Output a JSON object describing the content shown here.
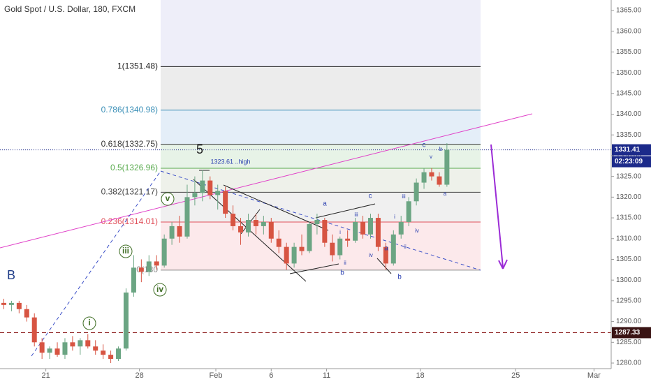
{
  "chart_data": {
    "type": "candlestick",
    "title": "Gold Spot / U.S. Dollar, 180, FXCM",
    "up_color": "#6ba583",
    "down_color": "#d75442",
    "x": [
      1,
      3,
      5,
      7,
      9,
      11,
      13,
      15,
      17,
      19,
      21,
      23,
      25,
      27,
      29,
      31,
      33,
      35,
      37,
      39,
      41,
      43,
      45,
      47,
      49,
      51,
      53,
      55,
      57,
      59,
      61,
      63,
      65,
      67,
      69,
      71,
      73,
      75,
      77,
      79,
      81,
      83,
      85,
      87,
      89,
      91,
      93,
      95,
      97,
      99,
      101,
      103,
      105,
      107,
      109,
      111,
      113,
      115,
      117
    ],
    "open": [
      1294.5,
      1294,
      1294.5,
      1293,
      1291,
      1285,
      1282.5,
      1283.5,
      1282,
      1285,
      1284,
      1285.5,
      1284,
      1283,
      1282,
      1281,
      1283.5,
      1297,
      1303,
      1302,
      1304.5,
      1303.5,
      1310,
      1313,
      1310.5,
      1320,
      1321,
      1324,
      1320.5,
      1321.5,
      1316,
      1313,
      1311.5,
      1314.5,
      1313,
      1314,
      1310,
      1308,
      1304,
      1308,
      1307,
      1313.5,
      1314.5,
      1309,
      1306,
      1310,
      1309.5,
      1314,
      1311,
      1315,
      1308,
      1304,
      1311,
      1314,
      1319,
      1323.5,
      1326,
      1325,
      1323
    ],
    "high": [
      1295.5,
      1295,
      1295,
      1294,
      1292,
      1286,
      1284,
      1285,
      1286,
      1286.5,
      1286,
      1287,
      1285.5,
      1284.5,
      1283,
      1284,
      1298,
      1306,
      1305,
      1306,
      1306,
      1311,
      1314,
      1315.5,
      1323,
      1325,
      1326.5,
      1325,
      1323,
      1322.5,
      1318,
      1315,
      1316,
      1316,
      1315.5,
      1315,
      1312,
      1309,
      1309,
      1311,
      1314,
      1316,
      1315,
      1311,
      1310.5,
      1312,
      1315,
      1315.5,
      1316,
      1316,
      1309,
      1312,
      1315.5,
      1320,
      1324.5,
      1327,
      1327,
      1326,
      1333
    ],
    "low": [
      1293,
      1292.5,
      1292,
      1290,
      1284,
      1281,
      1281,
      1281.5,
      1281,
      1283,
      1282,
      1283.5,
      1282,
      1281,
      1280,
      1280.5,
      1283,
      1296,
      1299.5,
      1301,
      1302.5,
      1303,
      1308.5,
      1309,
      1310,
      1318,
      1319,
      1319.5,
      1317,
      1315,
      1312,
      1308.5,
      1310.5,
      1311,
      1311,
      1309,
      1306.5,
      1302.5,
      1303,
      1306,
      1306.5,
      1311,
      1308,
      1304.5,
      1305,
      1308,
      1309,
      1310,
      1310,
      1307,
      1302.5,
      1303.5,
      1310,
      1313,
      1318,
      1322,
      1324,
      1322.5,
      1322.5
    ],
    "close": [
      1294,
      1294.5,
      1293,
      1291,
      1285,
      1282.5,
      1283.5,
      1282,
      1285,
      1284,
      1285.5,
      1284,
      1283,
      1282,
      1281,
      1283.5,
      1297,
      1303,
      1302,
      1304.5,
      1303.5,
      1310,
      1313,
      1310.5,
      1320,
      1321,
      1324,
      1320.5,
      1321.5,
      1316,
      1313,
      1311.5,
      1314.5,
      1313,
      1314,
      1310,
      1308,
      1304,
      1308,
      1307,
      1313.5,
      1314.5,
      1309,
      1306,
      1310,
      1309.5,
      1314,
      1311,
      1315,
      1308,
      1304,
      1311,
      1314,
      1319,
      1323.5,
      1326,
      1325,
      1323,
      1331.41
    ],
    "xlim": [
      0,
      160
    ],
    "xticks": [
      {
        "value": 12,
        "label": "21"
      },
      {
        "value": 36.5,
        "label": "28"
      },
      {
        "value": 56.5,
        "label": "Feb"
      },
      {
        "value": 71,
        "label": "6"
      },
      {
        "value": 85.5,
        "label": "11"
      },
      {
        "value": 110,
        "label": "18"
      },
      {
        "value": 135,
        "label": "25"
      },
      {
        "value": 155.5,
        "label": "Mar"
      }
    ],
    "ylim": [
      1280,
      1365
    ],
    "yticks": [
      {
        "value": 1280,
        "label": "1280.00"
      },
      {
        "value": 1285,
        "label": "1285.00"
      },
      {
        "value": 1290,
        "label": "1290.00"
      },
      {
        "value": 1295,
        "label": "1295.00"
      },
      {
        "value": 1300,
        "label": "1300.00"
      },
      {
        "value": 1305,
        "label": "1305.00"
      },
      {
        "value": 1310,
        "label": "1310.00"
      },
      {
        "value": 1315,
        "label": "1315.00"
      },
      {
        "value": 1320,
        "label": "1320.00"
      },
      {
        "value": 1325,
        "label": "1325.00"
      },
      {
        "value": 1330,
        "label": "1330.00"
      },
      {
        "value": 1335,
        "label": "1335.00"
      },
      {
        "value": 1340,
        "label": "1340.00"
      },
      {
        "value": 1345,
        "label": "1345.00"
      },
      {
        "value": 1350,
        "label": "1350.00"
      },
      {
        "value": 1355,
        "label": "1355.00"
      },
      {
        "value": 1360,
        "label": "1360.00"
      },
      {
        "value": 1365,
        "label": "1365.00"
      }
    ],
    "last_price": 1331.41,
    "countdown": "02:23:09",
    "level_price": 1287.33,
    "fib_top_fill": "#eeeef9",
    "fib_levels": [
      {
        "label": "1(1351.48)",
        "value": 1351.48,
        "color": "#222222",
        "fill": "#ececec"
      },
      {
        "label": "0.786(1340.98)",
        "value": 1340.98,
        "color": "#3a8fb7",
        "fill": "#e4eef8"
      },
      {
        "label": "0.618(1332.75)",
        "value": 1332.75,
        "color": "#333333",
        "fill": "#e7f3e7"
      },
      {
        "label": "0.5(1326.96)",
        "value": 1326.96,
        "color": "#5aab4f",
        "fill": "#eef1ea"
      },
      {
        "label": "0.382(1321.17)",
        "value": 1321.17,
        "color": "#444444",
        "fill": "#f0f0f0"
      },
      {
        "label": "0.236(1314.01)",
        "value": 1314.01,
        "color": "#e0505a",
        "fill": "#fce9eb"
      },
      {
        "label": "0(130",
        "value": 1302.4,
        "color": "#888888"
      }
    ],
    "annotations": [
      "B",
      "i",
      "iii",
      "iv",
      "v",
      "5",
      "1323.61 ..high",
      "a",
      "b",
      "i",
      "ii",
      "iii",
      "iv",
      "c",
      "a",
      "b",
      "i",
      "ii",
      "iii",
      "iv",
      "v",
      "c",
      "b",
      "a"
    ]
  }
}
